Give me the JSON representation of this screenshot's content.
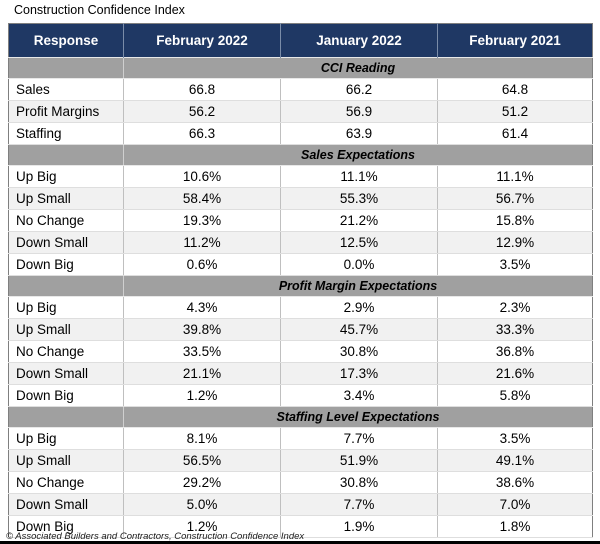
{
  "title": "Construction Confidence Index",
  "footer": "© Associated Builders and Contractors, Construction Confidence Index",
  "colors": {
    "header_bg": "#1f3864",
    "header_text": "#ffffff",
    "section_band_bg": "#a0a0a0",
    "alt_row_bg": "#f1f1f1",
    "grid_line": "#bfbfbf",
    "outer_border": "#7f7f7f",
    "bottom_bar": "#000000"
  },
  "chart_data": {
    "type": "table",
    "title": "Construction Confidence Index",
    "columns": [
      "Response",
      "February 2022",
      "January 2022",
      "February 2021"
    ],
    "sections": [
      {
        "label": "CCI Reading",
        "rows": [
          [
            "Sales",
            "66.8",
            "66.2",
            "64.8"
          ],
          [
            "Profit Margins",
            "56.2",
            "56.9",
            "51.2"
          ],
          [
            "Staffing",
            "66.3",
            "63.9",
            "61.4"
          ]
        ]
      },
      {
        "label": "Sales Expectations",
        "rows": [
          [
            "Up Big",
            "10.6%",
            "11.1%",
            "11.1%"
          ],
          [
            "Up Small",
            "58.4%",
            "55.3%",
            "56.7%"
          ],
          [
            "No Change",
            "19.3%",
            "21.2%",
            "15.8%"
          ],
          [
            "Down Small",
            "11.2%",
            "12.5%",
            "12.9%"
          ],
          [
            "Down Big",
            "0.6%",
            "0.0%",
            "3.5%"
          ]
        ]
      },
      {
        "label": "Profit Margin Expectations",
        "rows": [
          [
            "Up Big",
            "4.3%",
            "2.9%",
            "2.3%"
          ],
          [
            "Up Small",
            "39.8%",
            "45.7%",
            "33.3%"
          ],
          [
            "No Change",
            "33.5%",
            "30.8%",
            "36.8%"
          ],
          [
            "Down Small",
            "21.1%",
            "17.3%",
            "21.6%"
          ],
          [
            "Down Big",
            "1.2%",
            "3.4%",
            "5.8%"
          ]
        ]
      },
      {
        "label": "Staffing Level Expectations",
        "rows": [
          [
            "Up Big",
            "8.1%",
            "7.7%",
            "3.5%"
          ],
          [
            "Up Small",
            "56.5%",
            "51.9%",
            "49.1%"
          ],
          [
            "No Change",
            "29.2%",
            "30.8%",
            "38.6%"
          ],
          [
            "Down Small",
            "5.0%",
            "7.7%",
            "7.0%"
          ],
          [
            "Down Big",
            "1.2%",
            "1.9%",
            "1.8%"
          ]
        ]
      }
    ]
  }
}
